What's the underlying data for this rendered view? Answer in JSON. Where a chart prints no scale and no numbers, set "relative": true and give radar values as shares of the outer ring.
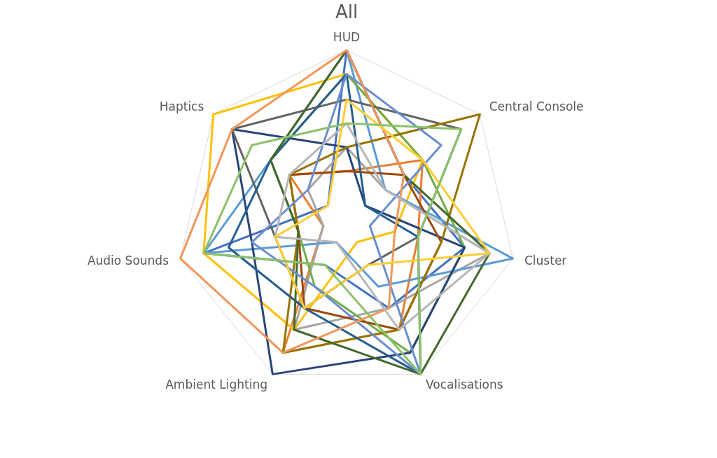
{
  "chart_data": {
    "type": "radar",
    "title": "All",
    "relative": true,
    "grid": true,
    "categories": [
      "HUD",
      "Central Console",
      "Cluster",
      "Vocalisations",
      "Ambient Lighting",
      "Audio Sounds",
      "Haptics"
    ],
    "series": [
      {
        "color": "#4472c4",
        "values": [
          1,
          0.43,
          0.71,
          0.57,
          0.29,
          0.86,
          0.14
        ]
      },
      {
        "color": "#ed7d31",
        "values": [
          0.29,
          0.57,
          0.43,
          0.71,
          0.86,
          0.14,
          0.43
        ]
      },
      {
        "color": "#a5a5a5",
        "values": [
          0.43,
          0.29,
          0.86,
          0.57,
          0.71,
          0.14,
          0.29
        ]
      },
      {
        "color": "#ffc000",
        "values": [
          0.86,
          0.57,
          0.29,
          0.14,
          0.71,
          0.86,
          1
        ]
      },
      {
        "color": "#5b9bd5",
        "values": [
          1,
          0.29,
          1,
          0.43,
          0.14,
          0.86,
          0.57
        ]
      },
      {
        "color": "#70ad47",
        "values": [
          0.86,
          0.57,
          0.71,
          0.86,
          0.43,
          0.29,
          0.57
        ]
      },
      {
        "color": "#264478",
        "values": [
          0.43,
          0.14,
          0.71,
          0.86,
          1,
          0.57,
          0.86
        ]
      },
      {
        "color": "#9e480e",
        "values": [
          0.29,
          0.43,
          0.57,
          0.71,
          0.57,
          0.29,
          0.43
        ]
      },
      {
        "color": "#636363",
        "values": [
          0.71,
          0.86,
          0.43,
          0.29,
          0.57,
          0.43,
          0.86
        ]
      },
      {
        "color": "#997300",
        "values": [
          0.43,
          1,
          0.57,
          0.71,
          0.86,
          0.29,
          0.43
        ]
      },
      {
        "color": "#255e91",
        "values": [
          0.86,
          0.14,
          0.43,
          1,
          0.57,
          0.71,
          0.57
        ]
      },
      {
        "color": "#43682b",
        "values": [
          1,
          0.43,
          0.86,
          1,
          0.71,
          0.29,
          0.57
        ]
      },
      {
        "color": "#698ed0",
        "values": [
          0.86,
          0.71,
          0.14,
          1,
          0.43,
          0.57,
          0.29
        ]
      },
      {
        "color": "#f1975a",
        "values": [
          1,
          0.43,
          0.29,
          0.57,
          0.86,
          1,
          0.86
        ]
      },
      {
        "color": "#b7b7b7",
        "values": [
          0.57,
          0.29,
          0.86,
          0.71,
          0.14,
          0.43,
          0.43
        ]
      },
      {
        "color": "#ffcd33",
        "values": [
          0.71,
          0.57,
          0.86,
          0.29,
          0.57,
          0.43,
          0.14
        ]
      },
      {
        "color": "#8cc168",
        "values": [
          0.57,
          0.86,
          0.43,
          1,
          0.29,
          0.86,
          0.71
        ]
      }
    ]
  }
}
